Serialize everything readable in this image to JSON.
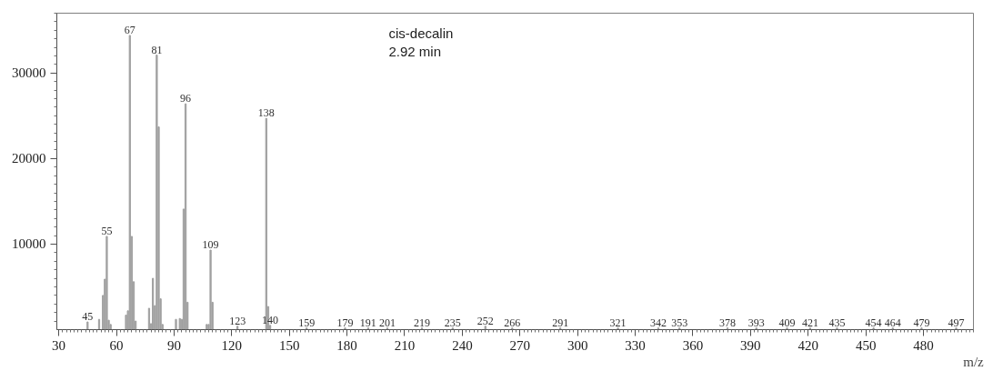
{
  "chart_data": {
    "type": "bar",
    "xlabel": "m/z",
    "color": "#a0a0a0",
    "x": [
      45,
      51,
      53,
      54,
      55,
      56,
      57,
      65,
      66,
      67,
      68,
      69,
      70,
      77,
      78,
      79,
      80,
      81,
      82,
      83,
      84,
      91,
      93,
      94,
      95,
      96,
      97,
      107,
      108,
      109,
      110,
      123,
      138,
      139,
      140,
      159,
      179,
      191,
      201,
      219,
      235,
      252,
      266,
      291,
      321,
      342,
      353,
      378,
      393,
      409,
      421,
      435,
      454,
      464,
      479,
      497
    ],
    "values": [
      900,
      1200,
      4000,
      5900,
      10900,
      1100,
      600,
      1700,
      2200,
      34400,
      10900,
      5600,
      1000,
      2500,
      700,
      6000,
      2800,
      32100,
      23700,
      3600,
      600,
      1200,
      1300,
      1200,
      14100,
      26400,
      3200,
      600,
      600,
      9300,
      3200,
      400,
      24700,
      2700,
      500,
      200,
      200,
      200,
      200,
      200,
      200,
      400,
      200,
      200,
      200,
      200,
      200,
      200,
      200,
      200,
      200,
      200,
      200,
      200,
      200,
      200
    ],
    "xlim": [
      29,
      506
    ],
    "ylim": [
      0,
      37000
    ],
    "xticks": [
      30,
      60,
      90,
      120,
      150,
      180,
      210,
      240,
      270,
      300,
      330,
      360,
      390,
      420,
      450,
      480
    ],
    "yticks": [
      10000,
      20000,
      30000
    ],
    "grid": false,
    "annotations": [
      "cis-decalin",
      "2.92 min",
      {
        "text": "45",
        "x": 45,
        "y": 900
      },
      {
        "text": "55",
        "x": 55,
        "y": 10900
      },
      {
        "text": "67",
        "x": 67,
        "y": 34400
      },
      {
        "text": "81",
        "x": 81,
        "y": 32100
      },
      {
        "text": "96",
        "x": 96,
        "y": 26400
      },
      {
        "text": "109",
        "x": 109,
        "y": 9300
      },
      {
        "text": "123",
        "x": 123,
        "y": 400
      },
      {
        "text": "138",
        "x": 138,
        "y": 24700
      },
      {
        "text": "140",
        "x": 140,
        "y": 500
      },
      {
        "text": "159",
        "x": 159,
        "y": 200
      },
      {
        "text": "179",
        "x": 179,
        "y": 200
      },
      {
        "text": "191",
        "x": 191,
        "y": 200
      },
      {
        "text": "201",
        "x": 201,
        "y": 200
      },
      {
        "text": "219",
        "x": 219,
        "y": 200
      },
      {
        "text": "235",
        "x": 235,
        "y": 200
      },
      {
        "text": "252",
        "x": 252,
        "y": 400
      },
      {
        "text": "266",
        "x": 266,
        "y": 200
      },
      {
        "text": "291",
        "x": 291,
        "y": 200
      },
      {
        "text": "321",
        "x": 321,
        "y": 200
      },
      {
        "text": "342",
        "x": 342,
        "y": 200
      },
      {
        "text": "353",
        "x": 353,
        "y": 200
      },
      {
        "text": "378",
        "x": 378,
        "y": 200
      },
      {
        "text": "393",
        "x": 393,
        "y": 200
      },
      {
        "text": "409",
        "x": 409,
        "y": 200
      },
      {
        "text": "421",
        "x": 421,
        "y": 200
      },
      {
        "text": "435",
        "x": 435,
        "y": 200
      },
      {
        "text": "454",
        "x": 454,
        "y": 200
      },
      {
        "text": "464",
        "x": 464,
        "y": 200
      },
      {
        "text": "479",
        "x": 479,
        "y": 200
      },
      {
        "text": "497",
        "x": 497,
        "y": 200
      }
    ]
  }
}
